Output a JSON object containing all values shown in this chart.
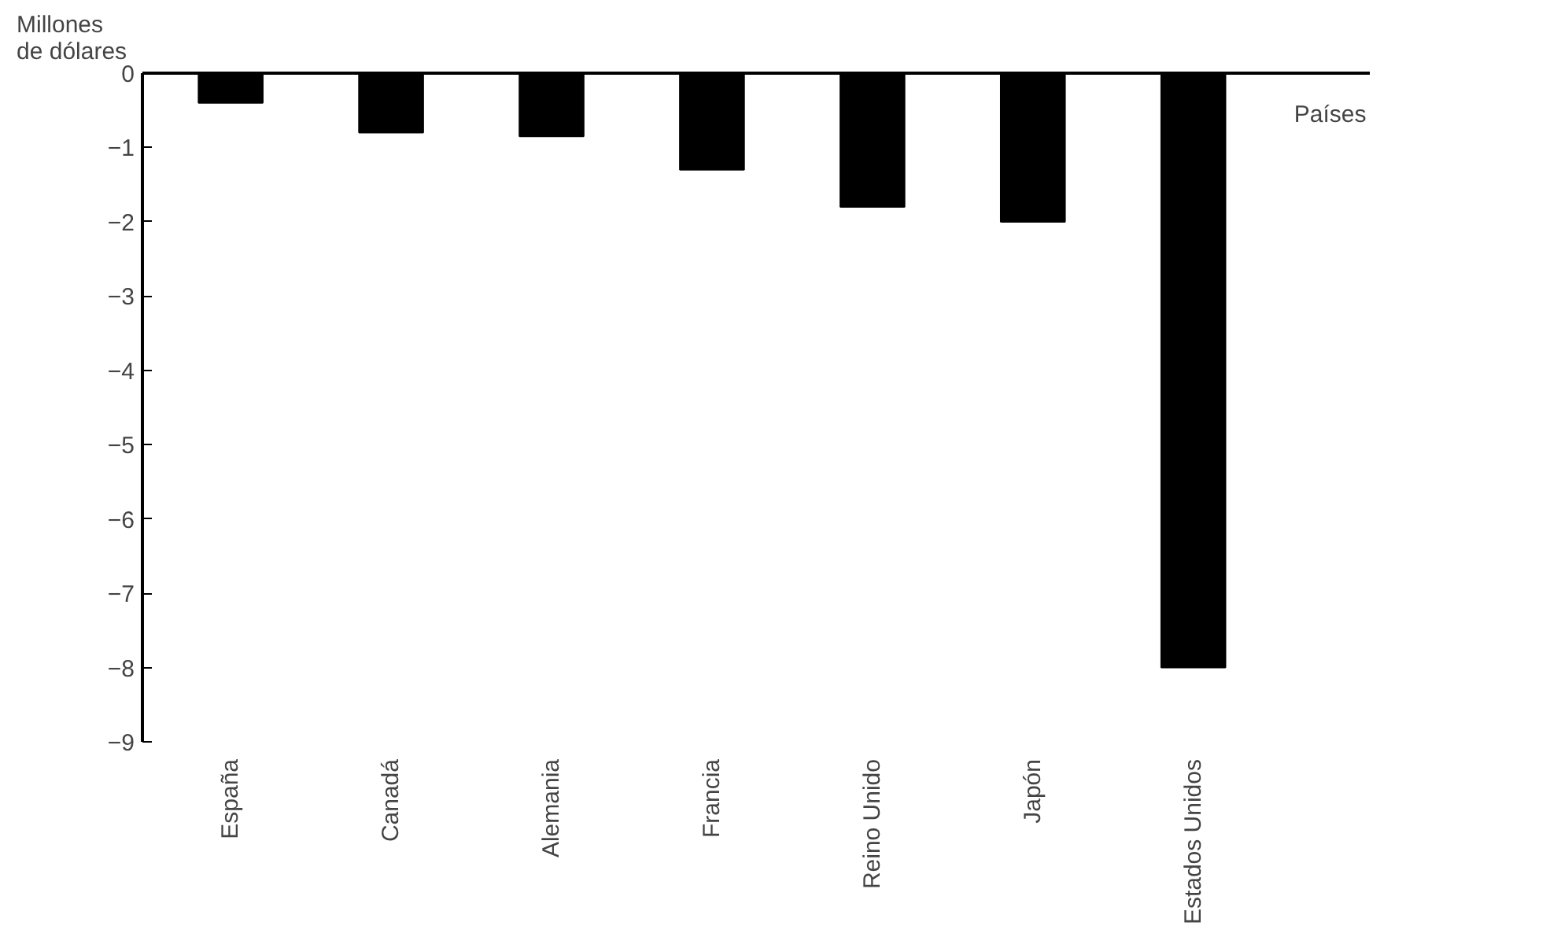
{
  "chart_data": {
    "type": "bar",
    "ylabel": "Millones de dólares",
    "xlabel": "Países",
    "categories": [
      "España",
      "Canadá",
      "Alemania",
      "Francia",
      "Reino Unido",
      "Japón",
      "Estados Unidos"
    ],
    "values": [
      -0.4,
      -0.8,
      -0.85,
      -1.3,
      -1.8,
      -2.0,
      -8.0
    ],
    "color": "#000000",
    "ylim": [
      -9,
      0
    ],
    "yticks": [
      0,
      -1,
      -2,
      -3,
      -4,
      -5,
      -6,
      -7,
      -8,
      -9
    ],
    "grid": false
  }
}
